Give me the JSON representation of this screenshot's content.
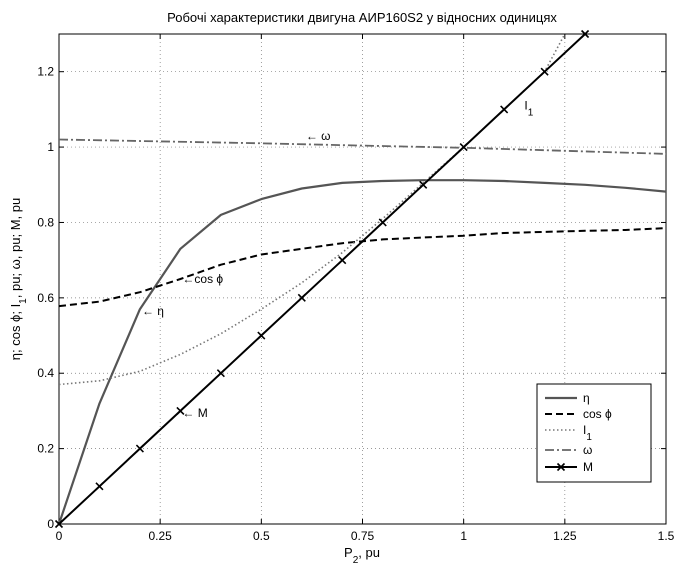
{
  "chart_data": {
    "type": "line",
    "title": "Робочі характеристики двигуна АИР160S2 у відносних одиницях",
    "xlabel": "P",
    "xlabel_sub": "2",
    "xlabel_unit": ", pu",
    "ylabel": "η; cos ϕ; I",
    "ylabel_sub": "1",
    "ylabel_rest": ", pu; ω, pu; M, pu",
    "xlim": [
      0,
      1.5
    ],
    "ylim": [
      0,
      1.3
    ],
    "xticks": [
      0,
      0.25,
      0.5,
      0.75,
      1,
      1.25,
      1.5
    ],
    "xticklabels": [
      "0",
      "0.25",
      "0.5",
      "0.75",
      "1",
      "1.25",
      "1.5"
    ],
    "yticks": [
      0,
      0.2,
      0.4,
      0.6,
      0.8,
      1.0,
      1.2
    ],
    "yticklabels": [
      "0",
      "0.2",
      "0.4",
      "0.6",
      "0.8",
      "1",
      "1.2"
    ],
    "grid": true,
    "legend": "bottom-right",
    "series": [
      {
        "name": "η",
        "name_sub": "",
        "color": "#555555",
        "dash": "",
        "width": 2.2,
        "marker": "",
        "x": [
          0,
          0.1,
          0.2,
          0.3,
          0.4,
          0.5,
          0.6,
          0.7,
          0.8,
          0.9,
          1.0,
          1.1,
          1.2,
          1.3,
          1.4,
          1.5
        ],
        "y": [
          0,
          0.32,
          0.57,
          0.73,
          0.82,
          0.862,
          0.89,
          0.905,
          0.91,
          0.912,
          0.912,
          0.91,
          0.905,
          0.9,
          0.892,
          0.882
        ]
      },
      {
        "name": "cos ϕ",
        "name_sub": "",
        "color": "#000000",
        "dash": "7,4",
        "width": 2,
        "marker": "",
        "x": [
          0,
          0.1,
          0.2,
          0.3,
          0.4,
          0.5,
          0.6,
          0.7,
          0.8,
          0.9,
          1.0,
          1.1,
          1.2,
          1.3,
          1.4,
          1.5
        ],
        "y": [
          0.578,
          0.59,
          0.615,
          0.65,
          0.688,
          0.715,
          0.73,
          0.745,
          0.755,
          0.76,
          0.765,
          0.772,
          0.775,
          0.778,
          0.78,
          0.785
        ]
      },
      {
        "name": "I",
        "name_sub": "1",
        "color": "#777777",
        "dash": "1.5,2.5",
        "width": 1.6,
        "marker": "",
        "x": [
          0,
          0.1,
          0.2,
          0.3,
          0.4,
          0.5,
          0.6,
          0.7,
          0.8,
          0.9,
          1.0,
          1.1,
          1.2,
          1.25
        ],
        "y": [
          0.37,
          0.38,
          0.405,
          0.45,
          0.505,
          0.57,
          0.64,
          0.72,
          0.81,
          0.905,
          1.0,
          1.1,
          1.2,
          1.3
        ]
      },
      {
        "name": "ω",
        "name_sub": "",
        "color": "#666666",
        "dash": "9,3,2,3",
        "width": 1.8,
        "marker": "",
        "x": [
          0,
          0.25,
          0.5,
          0.75,
          1.0,
          1.25,
          1.5
        ],
        "y": [
          1.02,
          1.015,
          1.01,
          1.004,
          0.998,
          0.99,
          0.982
        ]
      },
      {
        "name": "M",
        "name_sub": "",
        "color": "#000000",
        "dash": "",
        "width": 2,
        "marker": "x",
        "x": [
          0,
          0.1,
          0.2,
          0.3,
          0.4,
          0.5,
          0.6,
          0.7,
          0.8,
          0.9,
          1.0,
          1.1,
          1.2,
          1.3
        ],
        "y": [
          0,
          0.1,
          0.2,
          0.3,
          0.4,
          0.5,
          0.6,
          0.7,
          0.8,
          0.9,
          1.0,
          1.1,
          1.2,
          1.3
        ]
      }
    ],
    "annotations": [
      {
        "text": "← ω",
        "sub": "",
        "x": 0.61,
        "y": 1.03
      },
      {
        "text": "I",
        "sub": "1",
        "x": 1.15,
        "y": 1.11
      },
      {
        "text": "←cos ϕ",
        "sub": "",
        "x": 0.305,
        "y": 0.65
      },
      {
        "text": "← η",
        "sub": "",
        "x": 0.205,
        "y": 0.565
      },
      {
        "text": "← M",
        "sub": "",
        "x": 0.305,
        "y": 0.295
      }
    ]
  }
}
